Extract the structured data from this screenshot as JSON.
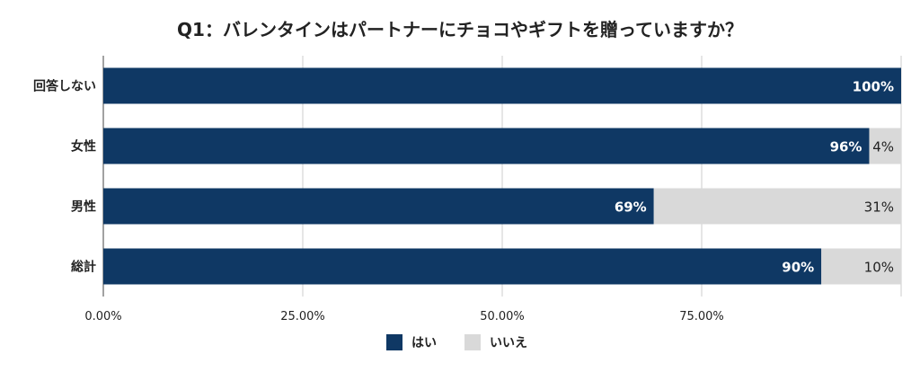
{
  "chart_data": {
    "type": "bar",
    "orientation": "horizontal",
    "stacked": true,
    "title": "Q1：バレンタインはパートナーにチョコやギフトを贈っていますか？",
    "categories": [
      "回答しない",
      "女性",
      "男性",
      "総計"
    ],
    "series": [
      {
        "name": "はい",
        "color": "#0f3864",
        "values": [
          100,
          96,
          69,
          90
        ],
        "labels": [
          "100%",
          "96%",
          "69%",
          "90%"
        ]
      },
      {
        "name": "いいえ",
        "color": "#d9d9d9",
        "values": [
          0,
          4,
          31,
          10
        ],
        "labels": [
          "",
          "4%",
          "31%",
          "10%"
        ]
      }
    ],
    "xticks": [
      "0.00%",
      "25.00%",
      "50.00%",
      "75.00%"
    ],
    "xlim": [
      0,
      100
    ],
    "grid": true,
    "legend_position": "bottom"
  }
}
